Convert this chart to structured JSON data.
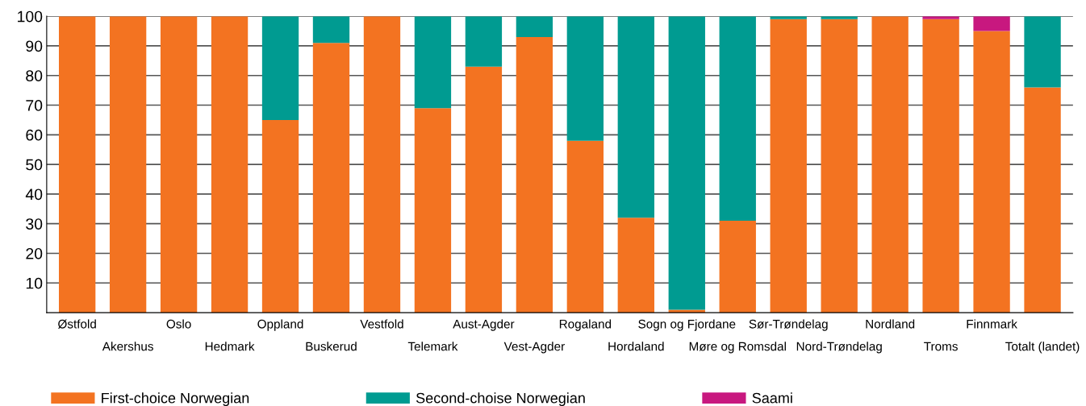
{
  "chart_data": {
    "type": "bar",
    "stacked": true,
    "categories": [
      "Østfold",
      "Akershus",
      "Oslo",
      "Hedmark",
      "Oppland",
      "Buskerud",
      "Vestfold",
      "Telemark",
      "Aust-Agder",
      "Vest-Agder",
      "Rogaland",
      "Hordaland",
      "Sogn og Fjordane",
      "Møre og Romsdal",
      "Sør-Trøndelag",
      "Nord-Trøndelag",
      "Nordland",
      "Troms",
      "Finnmark",
      "Totalt (landet)"
    ],
    "series": [
      {
        "name": "First-choice Norwegian",
        "color": "#f37321",
        "values": [
          100,
          100,
          100,
          100,
          65,
          91,
          100,
          69,
          83,
          93,
          58,
          32,
          1,
          31,
          99,
          99,
          100,
          99,
          95,
          76
        ]
      },
      {
        "name": "Second-choise Norwegian",
        "color": "#009b91",
        "values": [
          0,
          0,
          0,
          0,
          35,
          9,
          0,
          31,
          17,
          7,
          42,
          68,
          99,
          69,
          1,
          1,
          0,
          0,
          0,
          24
        ]
      },
      {
        "name": "Saami",
        "color": "#c8187f",
        "values": [
          0,
          0,
          0,
          0,
          0,
          0,
          0,
          0,
          0,
          0,
          0,
          0,
          0,
          0,
          0,
          0,
          0,
          1,
          5,
          0
        ]
      }
    ],
    "ylim": [
      0,
      100
    ],
    "yticks": [
      10,
      20,
      30,
      40,
      50,
      60,
      70,
      80,
      90,
      100
    ],
    "grid": "y",
    "legend": "bottom"
  }
}
